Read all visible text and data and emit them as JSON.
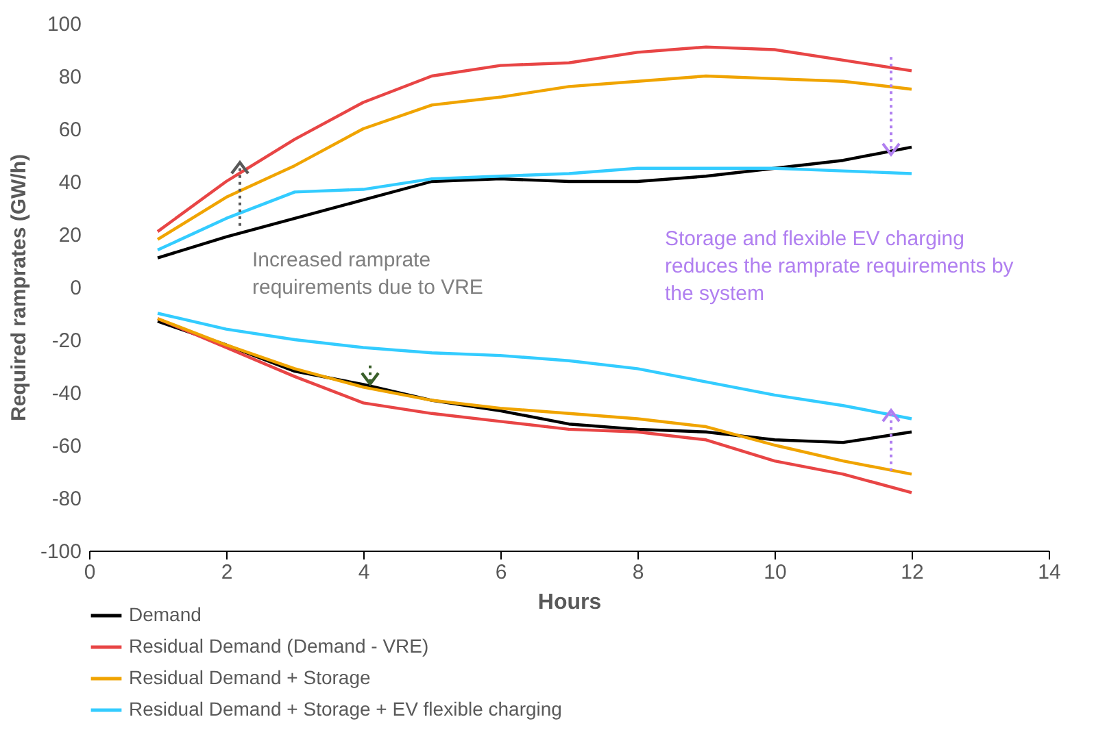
{
  "chart_data": {
    "type": "line",
    "xlabel": "Hours",
    "ylabel": "Required ramprates (GW/h)",
    "x": [
      1,
      2,
      3,
      4,
      5,
      6,
      7,
      8,
      9,
      10,
      11,
      12
    ],
    "series": [
      {
        "name": "Demand",
        "color": "#000000",
        "values": [
          11,
          19,
          26,
          33,
          40,
          41,
          40,
          40,
          42,
          45,
          48,
          53
        ]
      },
      {
        "name": "Residual Demand (Demand - VRE)",
        "color": "#e84545",
        "values": [
          21,
          40,
          56,
          70,
          80,
          84,
          85,
          89,
          91,
          90,
          86,
          82
        ]
      },
      {
        "name": "Residual Demand + Storage",
        "color": "#f0a400",
        "values": [
          18,
          34,
          46,
          60,
          69,
          72,
          76,
          78,
          80,
          79,
          78,
          75
        ]
      },
      {
        "name": "Residual Demand + Storage + EV flexible charging",
        "color": "#33ccff",
        "values": [
          14,
          26,
          36,
          37,
          41,
          42,
          43,
          45,
          45,
          45,
          44,
          43
        ]
      },
      {
        "color": "#000000",
        "values": [
          -13,
          -22,
          -32,
          -37,
          -43,
          -47,
          -52,
          -54,
          -55,
          -58,
          -59,
          -55
        ]
      },
      {
        "color": "#e84545",
        "values": [
          -12,
          -23,
          -34,
          -44,
          -48,
          -51,
          -54,
          -55,
          -58,
          -66,
          -71,
          -78
        ]
      },
      {
        "color": "#f0a400",
        "values": [
          -12,
          -22,
          -31,
          -38,
          -43,
          -46,
          -48,
          -50,
          -53,
          -60,
          -66,
          -71
        ]
      },
      {
        "color": "#33ccff",
        "values": [
          -10,
          -16,
          -20,
          -23,
          -25,
          -26,
          -28,
          -31,
          -36,
          -41,
          -45,
          -50
        ]
      }
    ],
    "xlim": [
      0,
      14
    ],
    "xticks": [
      0,
      2,
      4,
      6,
      8,
      10,
      12,
      14
    ],
    "ylim": [
      -100,
      100
    ],
    "yticks": [
      -100,
      -80,
      -60,
      -40,
      -20,
      0,
      20,
      40,
      60,
      80,
      100
    ],
    "grid": false,
    "legend": "bottom left",
    "marker": "none",
    "line_style": "solid",
    "annotations": [
      "Increased ramprate requirements due to VRE",
      "Storage and flexible EV charging reduces the ramprate requirements by the system"
    ]
  }
}
